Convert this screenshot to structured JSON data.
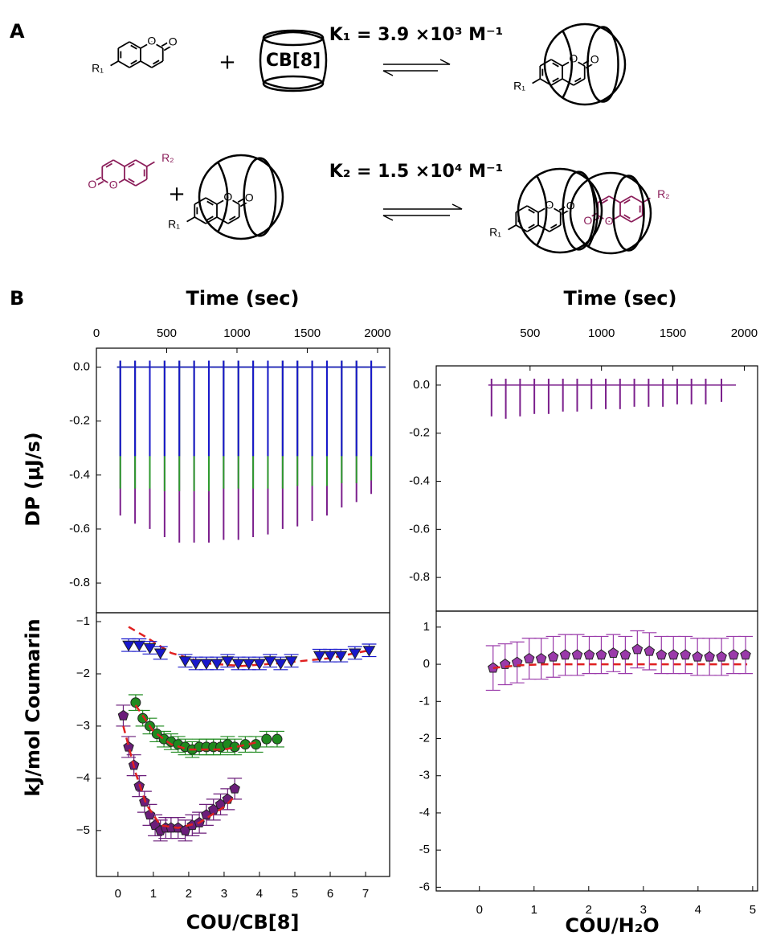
{
  "panel_labels": [
    "A",
    "B"
  ],
  "scheme": {
    "cb8": "CB[8]",
    "plus": "+",
    "k1": "K₁ = 3.9 ×10³ M⁻¹",
    "k2": "K₂ = 1.5 ×10⁴ M⁻¹",
    "r1": "R₁",
    "r2": "R₂",
    "oxygen": "O"
  },
  "chart_data": [
    {
      "type": "spike",
      "x_label": "Time (sec)",
      "y_label": "DP (μJ/s)",
      "x_axis": "top",
      "xlim": [
        0,
        2086
      ],
      "xticks": [
        0,
        500,
        1000,
        1500,
        2000
      ],
      "ylim": [
        -0.91,
        0.07
      ],
      "yticks": [
        {
          "value": 0,
          "label": "0.0"
        },
        -0.2,
        -0.4,
        -0.6,
        -0.8
      ],
      "series": [
        {
          "color": "#7b1f8c",
          "x": [
            170,
            275,
            380,
            485,
            590,
            695,
            800,
            905,
            1010,
            1115,
            1220,
            1325,
            1430,
            1535,
            1640,
            1745,
            1850,
            1955
          ],
          "values": [
            -0.55,
            -0.58,
            -0.6,
            -0.63,
            -0.65,
            -0.65,
            -0.65,
            -0.64,
            -0.64,
            -0.63,
            -0.62,
            -0.6,
            -0.59,
            -0.57,
            -0.55,
            -0.52,
            -0.5,
            -0.47
          ]
        },
        {
          "color": "#2e9a2e",
          "x": [
            170,
            275,
            380,
            485,
            590,
            695,
            800,
            905,
            1010,
            1115,
            1220,
            1325,
            1430,
            1535,
            1640,
            1745,
            1850,
            1955
          ],
          "values": [
            -0.45,
            -0.45,
            -0.45,
            -0.46,
            -0.46,
            -0.46,
            -0.46,
            -0.45,
            -0.45,
            -0.45,
            -0.45,
            -0.45,
            -0.44,
            -0.44,
            -0.44,
            -0.43,
            -0.43,
            -0.42
          ]
        },
        {
          "color": "#1818cc",
          "x": [
            170,
            275,
            380,
            485,
            590,
            695,
            800,
            905,
            1010,
            1115,
            1220,
            1325,
            1430,
            1535,
            1640,
            1745,
            1850,
            1955
          ],
          "values": [
            -0.33,
            -0.33,
            -0.33,
            -0.33,
            -0.33,
            -0.33,
            -0.33,
            -0.33,
            -0.33,
            -0.33,
            -0.33,
            -0.33,
            -0.33,
            -0.33,
            -0.33,
            -0.33,
            -0.33,
            -0.33
          ]
        }
      ]
    },
    {
      "type": "scatter",
      "x_label": "COU/CB[8]",
      "y_label": "kJ/mol Coumarin",
      "xlim": [
        -0.61,
        7.68
      ],
      "xticks": [
        0,
        1,
        2,
        3,
        4,
        5,
        6,
        7
      ],
      "ylim": [
        -5.88,
        -0.83
      ],
      "yticks": [
        {
          "value": -1,
          "label": "−1"
        },
        {
          "value": -2,
          "label": "−2"
        },
        {
          "value": -3,
          "label": "−3"
        },
        {
          "value": -4,
          "label": "−4"
        },
        {
          "value": -5,
          "label": "−5"
        }
      ],
      "series": [
        {
          "color": "#e02020",
          "marker": "none",
          "line": "dashed",
          "x": [
            0.3,
            0.8,
            1.5,
            2.5,
            3.5,
            4.5,
            6,
            7.1
          ],
          "values": [
            -1.1,
            -1.3,
            -1.6,
            -1.8,
            -1.85,
            -1.8,
            -1.7,
            -1.55
          ]
        },
        {
          "color": "#1818cc",
          "marker": "triangle",
          "x": [
            0.3,
            0.6,
            0.9,
            1.2,
            1.9,
            2.2,
            2.5,
            2.8,
            3.1,
            3.4,
            3.7,
            4.0,
            4.3,
            4.6,
            4.9,
            5.7,
            6.0,
            6.3,
            6.7,
            7.1
          ],
          "values": [
            -1.45,
            -1.45,
            -1.5,
            -1.6,
            -1.75,
            -1.8,
            -1.8,
            -1.8,
            -1.75,
            -1.8,
            -1.8,
            -1.8,
            -1.75,
            -1.8,
            -1.75,
            -1.65,
            -1.65,
            -1.65,
            -1.6,
            -1.55
          ],
          "errors": [
            0.12,
            0.12,
            0.12,
            0.12,
            0.12,
            0.12,
            0.12,
            0.12,
            0.12,
            0.12,
            0.12,
            0.12,
            0.12,
            0.12,
            0.12,
            0.12,
            0.12,
            0.12,
            0.12,
            0.12
          ]
        },
        {
          "color": "#1f8a1f",
          "marker": "circle",
          "x": [
            0.5,
            0.7,
            0.9,
            1.1,
            1.3,
            1.5,
            1.7,
            1.9,
            2.1,
            2.3,
            2.5,
            2.7,
            2.9,
            3.1,
            3.3,
            3.6,
            3.9,
            4.2,
            4.5
          ],
          "values": [
            -2.55,
            -2.85,
            -3.0,
            -3.15,
            -3.25,
            -3.3,
            -3.35,
            -3.4,
            -3.45,
            -3.4,
            -3.4,
            -3.4,
            -3.4,
            -3.35,
            -3.4,
            -3.35,
            -3.35,
            -3.25,
            -3.25
          ],
          "errors": [
            0.15,
            0.15,
            0.15,
            0.15,
            0.15,
            0.15,
            0.15,
            0.15,
            0.15,
            0.15,
            0.15,
            0.15,
            0.15,
            0.15,
            0.15,
            0.15,
            0.15,
            0.15,
            0.15
          ]
        },
        {
          "color": "#e02020",
          "marker": "none",
          "line": "dashed",
          "x": [
            0.5,
            1.0,
            1.5,
            2,
            3,
            4
          ],
          "values": [
            -2.6,
            -3.1,
            -3.35,
            -3.45,
            -3.45,
            -3.3
          ]
        },
        {
          "color": "#6b1e7a",
          "marker": "pentagon",
          "x": [
            0.15,
            0.3,
            0.45,
            0.6,
            0.75,
            0.9,
            1.05,
            1.2,
            1.35,
            1.5,
            1.7,
            1.9,
            2.1,
            2.3,
            2.5,
            2.7,
            2.9,
            3.1,
            3.3
          ],
          "values": [
            -2.8,
            -3.4,
            -3.75,
            -4.15,
            -4.45,
            -4.7,
            -4.9,
            -5.0,
            -4.95,
            -4.95,
            -4.95,
            -5.0,
            -4.9,
            -4.85,
            -4.7,
            -4.6,
            -4.5,
            -4.4,
            -4.2
          ],
          "errors": [
            0.2,
            0.2,
            0.2,
            0.2,
            0.2,
            0.2,
            0.2,
            0.2,
            0.2,
            0.2,
            0.2,
            0.2,
            0.2,
            0.2,
            0.2,
            0.2,
            0.2,
            0.2,
            0.2
          ]
        },
        {
          "color": "#e02020",
          "marker": "none",
          "line": "dashed",
          "x": [
            0.15,
            0.5,
            0.8,
            1.2,
            1.7,
            2.3,
            3,
            3.3
          ],
          "values": [
            -3.0,
            -3.9,
            -4.5,
            -4.9,
            -4.95,
            -4.85,
            -4.55,
            -4.35
          ]
        }
      ]
    },
    {
      "type": "spike",
      "x_label": "Time (sec)",
      "x_axis": "top",
      "xlim": [
        -157,
        2093
      ],
      "xticks": [
        500,
        1000,
        1500,
        2000
      ],
      "ylim": [
        -0.94,
        0.08
      ],
      "yticks": [
        {
          "value": 0,
          "label": "0.0"
        },
        -0.2,
        -0.4,
        -0.6,
        -0.8
      ],
      "series": [
        {
          "color": "#7b1f8c",
          "x": [
            230,
            330,
            430,
            530,
            630,
            730,
            830,
            930,
            1030,
            1130,
            1230,
            1330,
            1430,
            1530,
            1630,
            1730,
            1840
          ],
          "values": [
            -0.13,
            -0.14,
            -0.13,
            -0.12,
            -0.12,
            -0.11,
            -0.11,
            -0.1,
            -0.1,
            -0.1,
            -0.09,
            -0.09,
            -0.09,
            -0.08,
            -0.08,
            -0.08,
            -0.07
          ]
        }
      ]
    },
    {
      "type": "scatter",
      "x_label": "COU/H₂O",
      "xlim": [
        -0.79,
        5.09
      ],
      "xticks": [
        0,
        1,
        2,
        3,
        4,
        5
      ],
      "ylim": [
        -6.1,
        1.43
      ],
      "yticks": [
        1,
        0,
        -1,
        -2,
        -3,
        -4,
        -5,
        -6
      ],
      "series": [
        {
          "color": "#9a3aaa",
          "marker": "pentagon",
          "x": [
            0.25,
            0.47,
            0.69,
            0.91,
            1.13,
            1.35,
            1.57,
            1.79,
            2.01,
            2.23,
            2.45,
            2.67,
            2.89,
            3.11,
            3.33,
            3.55,
            3.77,
            3.99,
            4.21,
            4.43,
            4.65,
            4.87
          ],
          "values": [
            -0.1,
            0,
            0.05,
            0.15,
            0.15,
            0.2,
            0.25,
            0.25,
            0.25,
            0.25,
            0.3,
            0.25,
            0.4,
            0.35,
            0.25,
            0.25,
            0.25,
            0.2,
            0.2,
            0.2,
            0.25,
            0.25
          ],
          "errors": [
            0.6,
            0.55,
            0.55,
            0.55,
            0.55,
            0.55,
            0.55,
            0.55,
            0.5,
            0.5,
            0.5,
            0.5,
            0.5,
            0.5,
            0.5,
            0.5,
            0.5,
            0.5,
            0.5,
            0.5,
            0.5,
            0.5
          ]
        },
        {
          "color": "#e02020",
          "marker": "none",
          "line": "dashed",
          "x": [
            0.25,
            0.7,
            1.2,
            2,
            3,
            4,
            4.9
          ],
          "values": [
            -0.1,
            -0.03,
            0,
            0,
            0,
            0,
            0
          ]
        }
      ]
    }
  ]
}
